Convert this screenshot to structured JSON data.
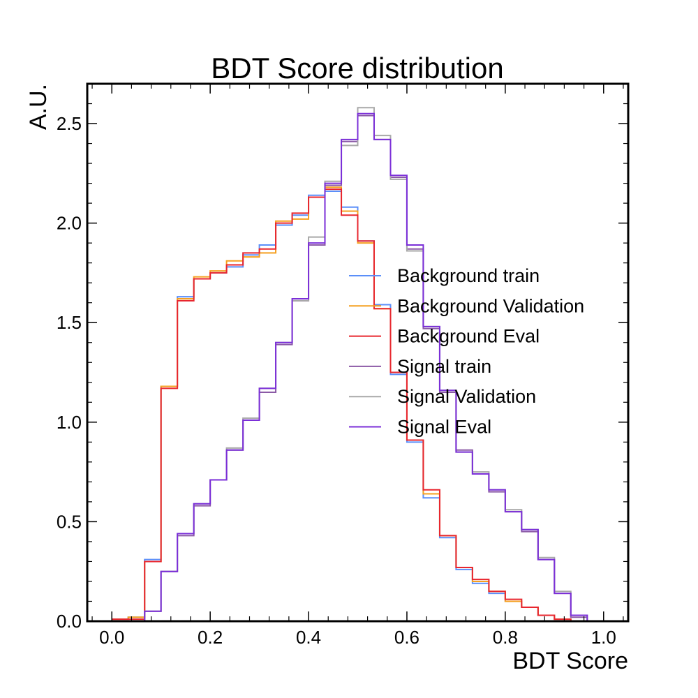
{
  "chart_data": {
    "type": "line",
    "title": "BDT Score distribution",
    "xlabel": "BDT Score",
    "ylabel": "A.U.",
    "xlim": [
      -0.05,
      1.05
    ],
    "ylim": [
      0.0,
      2.7
    ],
    "xticks": [
      0.0,
      0.2,
      0.4,
      0.6,
      0.8,
      1.0
    ],
    "xtick_labels": [
      "0.0",
      "0.2",
      "0.4",
      "0.6",
      "0.8",
      "1.0"
    ],
    "yticks": [
      0.0,
      0.5,
      1.0,
      1.5,
      2.0,
      2.5
    ],
    "ytick_labels": [
      "0.0",
      "0.5",
      "1.0",
      "1.5",
      "2.0",
      "2.5"
    ],
    "grid": false,
    "legend_position": "center-right",
    "histtype": "step",
    "bin_edges": [
      0.0,
      0.0333,
      0.0667,
      0.1,
      0.1333,
      0.1667,
      0.2,
      0.2333,
      0.2667,
      0.3,
      0.3333,
      0.3667,
      0.4,
      0.4333,
      0.4667,
      0.5,
      0.5333,
      0.5667,
      0.6,
      0.6333,
      0.6667,
      0.7,
      0.7333,
      0.7667,
      0.8,
      0.8333,
      0.8667,
      0.9,
      0.9333,
      0.9667,
      1.0
    ],
    "series": [
      {
        "name": "Background train",
        "color": "#5b8ff9",
        "values": [
          0.01,
          0.02,
          0.31,
          1.18,
          1.63,
          1.72,
          1.75,
          1.78,
          1.84,
          1.89,
          1.99,
          2.04,
          2.14,
          2.16,
          2.08,
          1.91,
          1.59,
          1.24,
          0.9,
          0.62,
          0.42,
          0.26,
          0.19,
          0.14,
          0.1,
          0.07,
          0.03,
          0.01,
          0.0,
          0.0
        ]
      },
      {
        "name": "Background Validation",
        "color": "#f5a020",
        "values": [
          0.01,
          0.02,
          0.3,
          1.18,
          1.62,
          1.73,
          1.76,
          1.81,
          1.83,
          1.85,
          2.01,
          2.02,
          2.13,
          2.18,
          2.06,
          1.9,
          1.57,
          1.25,
          0.91,
          0.64,
          0.43,
          0.27,
          0.2,
          0.15,
          0.1,
          0.07,
          0.03,
          0.01,
          0.0,
          0.0
        ]
      },
      {
        "name": "Background Eval",
        "color": "#e8262e",
        "values": [
          0.01,
          0.01,
          0.3,
          1.17,
          1.61,
          1.72,
          1.75,
          1.79,
          1.85,
          1.87,
          2.0,
          2.05,
          2.13,
          2.17,
          2.04,
          1.91,
          1.57,
          1.25,
          0.91,
          0.66,
          0.43,
          0.27,
          0.21,
          0.15,
          0.11,
          0.07,
          0.03,
          0.01,
          0.0,
          0.0
        ]
      },
      {
        "name": "Signal train",
        "color": "#8b5aa6",
        "values": [
          0.0,
          0.0,
          0.05,
          0.25,
          0.43,
          0.58,
          0.71,
          0.86,
          1.01,
          1.15,
          1.39,
          1.61,
          1.89,
          2.19,
          2.41,
          2.54,
          2.42,
          2.23,
          1.87,
          1.47,
          1.15,
          0.86,
          0.74,
          0.65,
          0.55,
          0.45,
          0.31,
          0.14,
          0.02,
          0.0
        ]
      },
      {
        "name": "Signal Validation",
        "color": "#a8a8a8",
        "values": [
          0.0,
          0.0,
          0.05,
          0.25,
          0.44,
          0.59,
          0.71,
          0.87,
          1.02,
          1.17,
          1.4,
          1.61,
          1.93,
          2.21,
          2.39,
          2.58,
          2.44,
          2.22,
          1.86,
          1.48,
          1.16,
          0.85,
          0.75,
          0.66,
          0.56,
          0.46,
          0.32,
          0.15,
          0.03,
          0.0
        ]
      },
      {
        "name": "Signal Eval",
        "color": "#7b2fd8",
        "values": [
          0.0,
          0.0,
          0.05,
          0.25,
          0.44,
          0.59,
          0.71,
          0.86,
          1.01,
          1.17,
          1.4,
          1.62,
          1.9,
          2.2,
          2.42,
          2.55,
          2.42,
          2.24,
          1.89,
          1.48,
          1.16,
          0.85,
          0.74,
          0.66,
          0.55,
          0.46,
          0.31,
          0.14,
          0.03,
          0.0
        ]
      }
    ]
  }
}
